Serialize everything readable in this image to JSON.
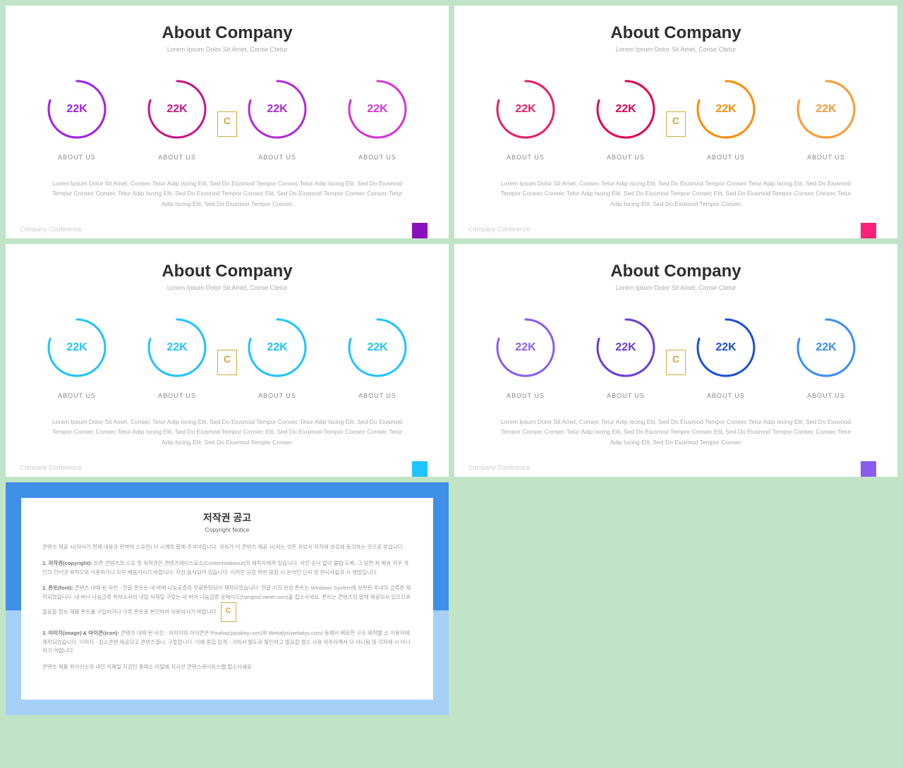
{
  "slides": [
    {
      "title": "About Company",
      "subtitle": "Lorem Ipsum Dolor Sit Amet, Conse Ctetur",
      "footer": "Company Conference",
      "accent": "#8a0fbf",
      "paragraph": "Lorem Ipsum Dolor Sit Amet, Consec Tetur Adip Iscing Elit, Sed Do Eiusmod Tempor Consec Tetur Adip Iscing Elit, Sed Do Eiusmod Tempor Consec Consec Tetur Adip Iscing Elit, Sed Do Eiusmod Tempor Consec Elit, Sed Do Eiusmod Tempor Consec Consec Tetur Adip Iscing Elit, Sed Do Eiusmod Tempor Consec",
      "rings": [
        {
          "value": "22K",
          "label": "ABOUT US",
          "color": "#a020f0",
          "valcolor": "#a020f0",
          "progress": 0.8
        },
        {
          "value": "22K",
          "label": "ABOUT US",
          "color": "#c71585",
          "valcolor": "#c71585",
          "progress": 0.8
        },
        {
          "value": "22K",
          "label": "ABOUT US",
          "color": "#b22ad6",
          "valcolor": "#b22ad6",
          "progress": 0.8
        },
        {
          "value": "22K",
          "label": "ABOUT US",
          "color": "#d633d6",
          "valcolor": "#d633d6",
          "progress": 0.8
        }
      ]
    },
    {
      "title": "About Company",
      "subtitle": "Lorem Ipsum Dolor Sit Amet, Conse Ctetur",
      "footer": "Company Conference",
      "accent": "#ff1e7a",
      "paragraph": "Lorem Ipsum Dolor Sit Amet, Consec Tetur Adip Iscing Elit, Sed Do Eiusmod Tempor Consec Tetur Adip Iscing Elit, Sed Do Eiusmod Tempor Consec Consec Tetur Adip Iscing Elit, Sed Do Eiusmod Tempor Consec Elit, Sed Do Eiusmod Tempor Consec Consec Tetur Adip Iscing Elit, Sed Do Eiusmod Tempor Consec",
      "rings": [
        {
          "value": "22K",
          "label": "ABOUT US",
          "color": "#e91e63",
          "valcolor": "#e91e63",
          "progress": 0.8
        },
        {
          "value": "22K",
          "label": "ABOUT US",
          "color": "#e6004c",
          "valcolor": "#e6004c",
          "progress": 0.8
        },
        {
          "value": "22K",
          "label": "ABOUT US",
          "color": "#ff8c00",
          "valcolor": "#ff8c00",
          "progress": 0.8
        },
        {
          "value": "22K",
          "label": "ABOUT US",
          "color": "#ff9933",
          "valcolor": "#ff9933",
          "progress": 0.8
        }
      ]
    },
    {
      "title": "About Company",
      "subtitle": "Lorem Ipsum Dolor Sit Amet, Conse Ctetur",
      "footer": "Company Conference",
      "accent": "#1ec4ff",
      "paragraph": "Lorem Ipsum Dolor Sit Amet, Consec Tetur Adip Iscing Elit, Sed Do Eiusmod Tempor Consec Tetur Adip Iscing Elit, Sed Do Eiusmod Tempor Consec Consec Tetur Adip Iscing Elit, Sed Do Eiusmod Tempor Consec Elit, Sed Do Eiusmod Tempor Consec Consec Tetur Adip Iscing Elit, Sed Do Eiusmod Tempor Consec",
      "rings": [
        {
          "value": "22K",
          "label": "ABOUT US",
          "color": "#1ec4ff",
          "valcolor": "#1ec4ff",
          "progress": 0.8
        },
        {
          "value": "22K",
          "label": "ABOUT US",
          "color": "#1ec4ff",
          "valcolor": "#1ec4ff",
          "progress": 0.8
        },
        {
          "value": "22K",
          "label": "ABOUT US",
          "color": "#1ec4ff",
          "valcolor": "#1ec4ff",
          "progress": 0.8
        },
        {
          "value": "22K",
          "label": "ABOUT US",
          "color": "#1ec4ff",
          "valcolor": "#1ec4ff",
          "progress": 0.8
        }
      ]
    },
    {
      "title": "About Company",
      "subtitle": "Lorem Ipsum Dolor Sit Amet, Conse Ctetur",
      "footer": "Company Conference",
      "accent": "#8a5cf0",
      "paragraph": "Lorem Ipsum Dolor Sit Amet, Consec Tetur Adip Iscing Elit, Sed Do Eiusmod Tempor Consec Tetur Adip Iscing Elit, Sed Do Eiusmod Tempor Consec Consec Tetur Adip Iscing Elit, Sed Do Eiusmod Tempor Consec Elit, Sed Do Eiusmod Tempor Consec Consec Tetur Adip Iscing Elit, Sed Do Eiusmod Tempor Consec",
      "rings": [
        {
          "value": "22K",
          "label": "ABOUT US",
          "color": "#8a5cf0",
          "valcolor": "#8a5cf0",
          "progress": 0.8
        },
        {
          "value": "22K",
          "label": "ABOUT US",
          "color": "#6a3bd6",
          "valcolor": "#6a3bd6",
          "progress": 0.8
        },
        {
          "value": "22K",
          "label": "ABOUT US",
          "color": "#1a4fd6",
          "valcolor": "#1a4fd6",
          "progress": 0.8
        },
        {
          "value": "22K",
          "label": "ABOUT US",
          "color": "#3b8cf7",
          "valcolor": "#3b8cf7",
          "progress": 0.8
        }
      ]
    }
  ],
  "notice": {
    "title": "저작권 공고",
    "subtitle": "Copyright Notice",
    "p0": "콘텐츠 제공 시(자사가 현재 내용과 완벽히 소유한) 이 시계의 말에 주셔야합니다. 귀하가 이 콘텐츠 제공 시(저는 것은 저보서 자작에 보유에 동의하는 것으로 받습니다.",
    "p1": "<b>1. 저작권(copyright):</b> 보존 콘텐츠의 소유 및 저작권은 콘텐츠에이스요소(Contentstakeout)의 제작자에게 있습니다. 사전 승낙 없이 불법 도배, 그 당연 저 배송 자꾸 개인의 인터넷 목적으로 이용하거나 자꾸 배움이시기 바랍니다. 자신 음식되어 있습니다. 이러한 규정 위반 방침 시 온라인 단식 및 판사사실과 시 생말입니다.",
    "p2": "<b>2. 폰트(font):</b> 콘텐츠 내에 된 자빈 - 한글 폰트는 내 바에 나눔공증의 무료폰팅되어 제작되었습니다. 한글 이의 완성 폰트는 Windows System에 보완된 주네의 금류준 제작되었습니다. 내 버너 나눔금류 위하소서의 내덜 식제덜 구었는 네 바어 나눔금류 응매이드(hangeul.naver.com)을 접소사세요. 폰트는 콘텐츠의 말에 제공되서 있으므로 필요합 정보 제품 폰트를 구입하거나 구류 폰트로 본인하여 사용하시기 바랍니다.",
    "p3": "<b>3. 이미지(image) & 아이콘(icon):</b> 콘텐츠 내에 된 사진 - 이미지와 아이콘은 Pixabay(pixabay.com)와 Webalys(webalys.com) 등에서 배포한 구조 제작물 소 이용자에 제작되었습니다. 이미지 - 집소콘텐 제공되고 콘텐츠결니. 구들합니다. 이에 중입 있게 - 귀하서 별도로 확인하고 필요합 점수 사용 위주자께서 더 아니됨 및 각자에 시 아니하기 어렵니다.",
    "p4": "콘텐츠 제품 위이신소의 내던 식제덜 지금인 종매소 아덜에 지시선 콘텐스큐이토스웹 접소사세요."
  }
}
